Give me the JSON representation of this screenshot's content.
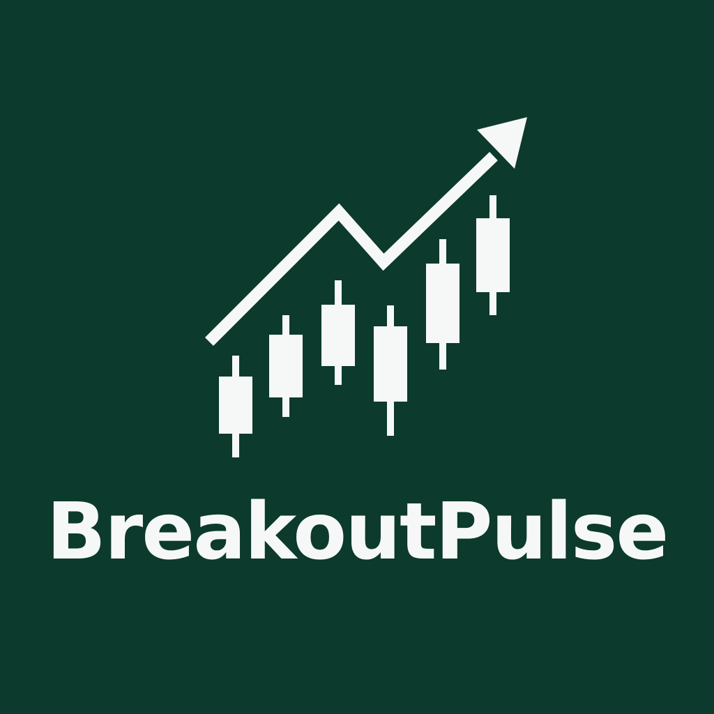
{
  "brand": {
    "name": "BreakoutPulse",
    "background_color": "#0c3a2c",
    "foreground_color": "#f6f8f7"
  },
  "logo": {
    "icon": "candlestick-chart-with-up-trend-arrow-icon"
  }
}
